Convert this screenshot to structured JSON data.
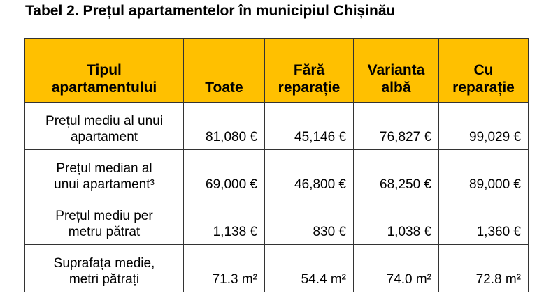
{
  "title": "Tabel 2. Prețul apartamentelor în municipiul Chișinău",
  "table": {
    "header": [
      [
        "Tipul",
        "apartamentului"
      ],
      [
        "Toate"
      ],
      [
        "Fără",
        "reparație"
      ],
      [
        "Varianta",
        "albă"
      ],
      [
        "Cu",
        "reparație"
      ]
    ],
    "rows": [
      {
        "label": [
          "Prețul mediu al unui",
          "apartament"
        ],
        "cells": [
          "81,080 €",
          "45,146 €",
          "76,827 €",
          "99,029 €"
        ]
      },
      {
        "label": [
          "Prețul median al",
          "unui apartament³"
        ],
        "cells": [
          "69,000 €",
          "46,800 €",
          "68,250 €",
          "89,000 €"
        ]
      },
      {
        "label": [
          "Prețul mediu per",
          "metru pătrat"
        ],
        "cells": [
          "1,138 €",
          "830 €",
          "1,038 €",
          "1,360 €"
        ]
      },
      {
        "label": [
          "Suprafața medie,",
          "metri pătrați"
        ],
        "cells": [
          "71.3 m²",
          "54.4 m²",
          "74.0 m²",
          "72.8 m²"
        ]
      }
    ]
  }
}
